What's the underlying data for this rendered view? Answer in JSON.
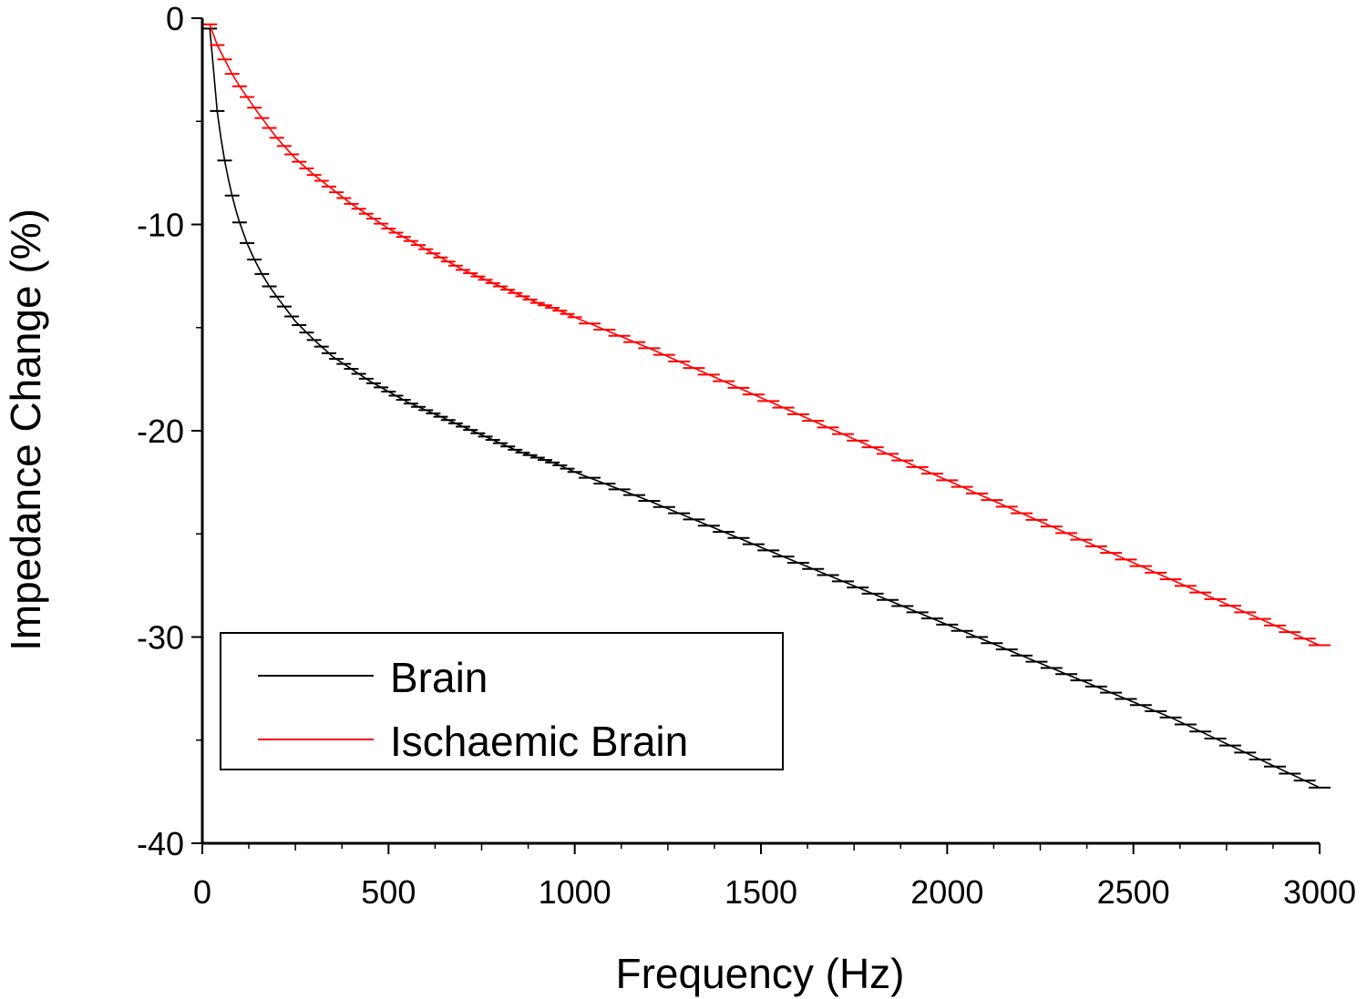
{
  "chart_data": {
    "type": "line",
    "title": "",
    "xlabel": "Frequency (Hz)",
    "ylabel": "Impedance Change (%)",
    "xlim": [
      0,
      3000
    ],
    "ylim": [
      -40,
      0
    ],
    "x_ticks": [
      0,
      500,
      1000,
      1500,
      2000,
      2500,
      3000
    ],
    "x_tick_labels": [
      "0",
      "500",
      "1000",
      "1500",
      "2000",
      "2500",
      "3000"
    ],
    "y_ticks": [
      0,
      -10,
      -20,
      -30,
      -40
    ],
    "y_tick_labels": [
      "0",
      "-10",
      "-20",
      "-30",
      "-40"
    ],
    "grid": false,
    "legend_position": "bottom-left",
    "error_bars": "horizontal",
    "series": [
      {
        "name": "Brain",
        "color": "#000000",
        "x": [
          20,
          30,
          40,
          50,
          60,
          70,
          80,
          90,
          100,
          120,
          140,
          160,
          180,
          200,
          250,
          300,
          350,
          400,
          450,
          500,
          550,
          600,
          650,
          700,
          750,
          800,
          850,
          900,
          950,
          1000,
          1200,
          1400,
          1600,
          1800,
          2000,
          2200,
          2400,
          2600,
          2800,
          3000
        ],
        "y": [
          -0.5,
          -2.5,
          -4.5,
          -5.8,
          -6.9,
          -7.8,
          -8.6,
          -9.3,
          -9.9,
          -10.9,
          -11.7,
          -12.4,
          -13.0,
          -13.5,
          -14.7,
          -15.6,
          -16.4,
          -17.0,
          -17.6,
          -18.1,
          -18.6,
          -19.0,
          -19.4,
          -19.8,
          -20.2,
          -20.6,
          -21.0,
          -21.3,
          -21.6,
          -22.0,
          -23.4,
          -24.9,
          -26.4,
          -27.9,
          -29.4,
          -30.9,
          -32.4,
          -33.9,
          -35.6,
          -37.3
        ]
      },
      {
        "name": "Ischaemic Brain",
        "color": "#ff0000",
        "x": [
          20,
          40,
          60,
          80,
          100,
          150,
          200,
          250,
          300,
          350,
          400,
          450,
          500,
          550,
          600,
          650,
          700,
          750,
          800,
          850,
          900,
          950,
          1000,
          1200,
          1400,
          1600,
          1800,
          2000,
          2200,
          2400,
          2600,
          2800,
          3000
        ],
        "y": [
          -0.3,
          -1.3,
          -2.0,
          -2.7,
          -3.3,
          -4.6,
          -5.8,
          -6.8,
          -7.6,
          -8.3,
          -9.0,
          -9.6,
          -10.2,
          -10.7,
          -11.2,
          -11.7,
          -12.2,
          -12.6,
          -13.0,
          -13.4,
          -13.8,
          -14.1,
          -14.5,
          -16.0,
          -17.6,
          -19.2,
          -20.8,
          -22.4,
          -24.0,
          -25.6,
          -27.2,
          -28.8,
          -30.4
        ]
      }
    ]
  }
}
